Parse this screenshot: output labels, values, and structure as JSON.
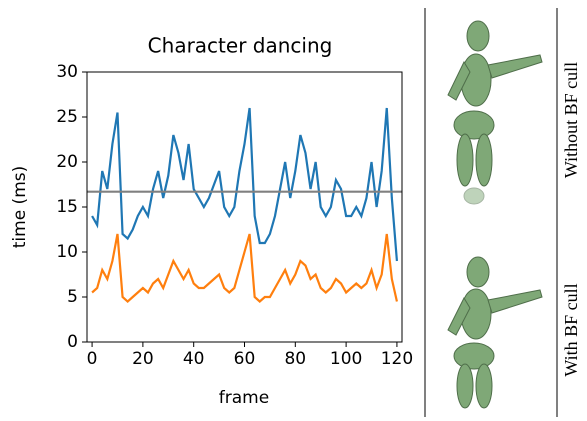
{
  "chart_data": {
    "type": "line",
    "title": "Character dancing",
    "x_label": "frame",
    "y_label": "time (ms)",
    "x": [
      0,
      2,
      4,
      6,
      8,
      10,
      12,
      14,
      16,
      18,
      20,
      22,
      24,
      26,
      28,
      30,
      32,
      34,
      36,
      38,
      40,
      42,
      44,
      46,
      48,
      50,
      52,
      54,
      56,
      58,
      60,
      62,
      64,
      66,
      68,
      70,
      72,
      74,
      76,
      78,
      80,
      82,
      84,
      86,
      88,
      90,
      92,
      94,
      96,
      98,
      100,
      102,
      104,
      106,
      108,
      110,
      112,
      114,
      116,
      118,
      120
    ],
    "series": [
      {
        "color": "#1f77b4",
        "values": [
          14,
          13,
          19,
          17,
          22,
          25.5,
          12,
          11.5,
          12.5,
          14,
          15,
          14,
          17,
          19,
          16,
          18.5,
          23,
          21,
          18,
          22,
          17,
          16,
          15,
          16,
          17.5,
          19,
          15,
          14,
          15,
          19,
          22,
          26,
          14,
          11,
          11,
          12,
          14,
          17,
          20,
          16,
          19,
          23,
          21,
          17,
          20,
          15,
          14,
          15,
          18,
          17,
          14,
          14,
          15,
          14,
          16,
          20,
          15,
          19,
          26,
          16,
          9
        ]
      },
      {
        "color": "#ff7f0e",
        "values": [
          5.5,
          6,
          8,
          7,
          9,
          12,
          5,
          4.5,
          5,
          5.5,
          6,
          5.5,
          6.5,
          7,
          6,
          7.5,
          9,
          8,
          7,
          8,
          6.5,
          6,
          6,
          6.5,
          7,
          7.5,
          6,
          5.5,
          6,
          8,
          10,
          12,
          5,
          4.5,
          5,
          5,
          6,
          7,
          8,
          6.5,
          7.5,
          9,
          8.5,
          7,
          7.5,
          6,
          5.5,
          6,
          7,
          6.5,
          5.5,
          6,
          6.5,
          6,
          6.5,
          8,
          6,
          7.5,
          12,
          7,
          4.5
        ]
      }
    ],
    "hline": 16.7,
    "hline_color": "#808080",
    "xlim": [
      -2,
      122
    ],
    "ylim": [
      0,
      30
    ],
    "xticks": [
      0,
      20,
      40,
      60,
      80,
      100,
      120
    ],
    "yticks": [
      0,
      5,
      10,
      15,
      20,
      25,
      30
    ]
  },
  "side_labels": [
    "Without BF cull",
    "With BF cull"
  ]
}
